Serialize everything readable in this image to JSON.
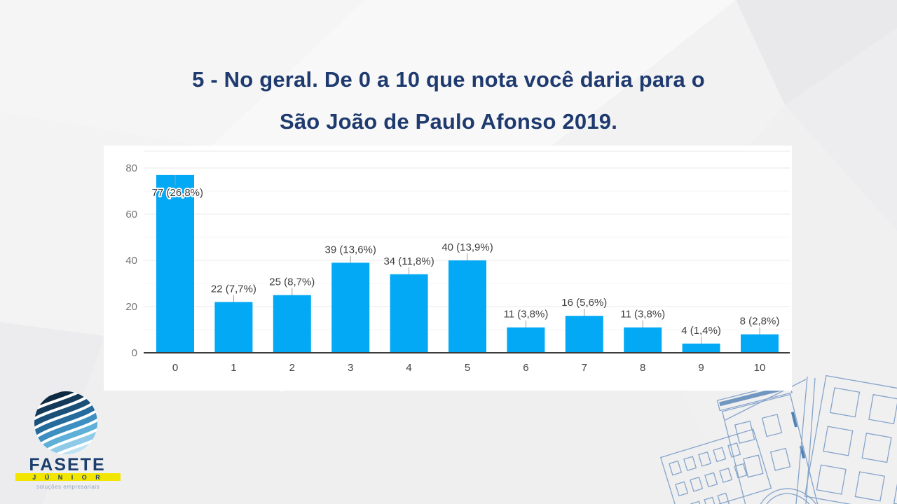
{
  "slide": {
    "title_line1": "5 - No geral. De 0 a 10 que nota você daria para o",
    "title_line2": "São João de Paulo Afonso 2019."
  },
  "colors": {
    "title": "#1e3a6e",
    "bar": "#03a9f4",
    "logo_navy": "#1c3f6e",
    "logo_yellow": "#f2e600",
    "tagline": "#93a4bd",
    "building_line": "#7a9cc6"
  },
  "chart_data": {
    "type": "bar",
    "title": "",
    "xlabel": "",
    "ylabel": "",
    "categories": [
      "0",
      "1",
      "2",
      "3",
      "4",
      "5",
      "6",
      "7",
      "8",
      "9",
      "10"
    ],
    "values": [
      77,
      22,
      25,
      39,
      34,
      40,
      11,
      16,
      11,
      4,
      8
    ],
    "labels": [
      "77 (26,8%)",
      "22 (7,7%)",
      "25 (8,7%)",
      "39 (13,6%)",
      "34 (11,8%)",
      "40 (13,9%)",
      "11 (3,8%)",
      "16 (5,6%)",
      "11 (3,8%)",
      "4 (1,4%)",
      "8 (2,8%)"
    ],
    "ylim": [
      0,
      80
    ],
    "yticks": [
      0,
      20,
      40,
      60,
      80
    ],
    "grid": true,
    "legend": false,
    "bar_color": "#03a9f4"
  },
  "logo": {
    "brand": "FASETE",
    "sub": "J Ú N I O R",
    "tagline": "soluções empresariais"
  }
}
